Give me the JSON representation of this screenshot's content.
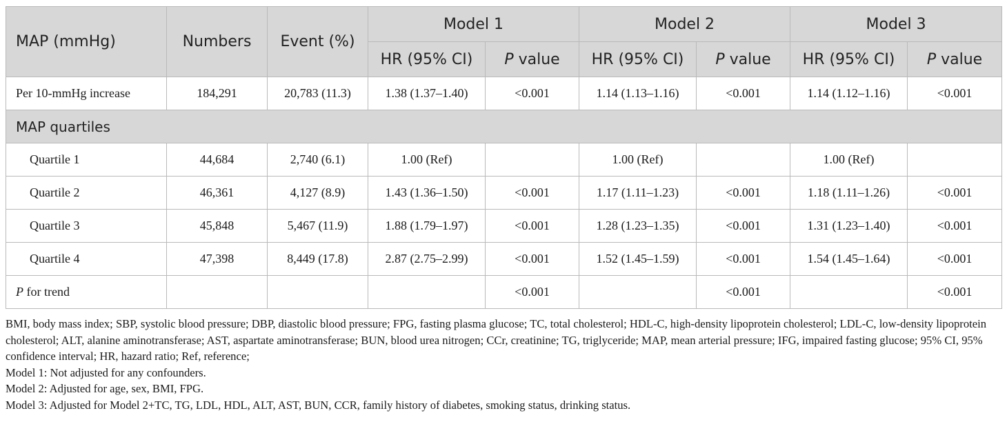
{
  "table": {
    "header": {
      "map_label": "MAP (mmHg)",
      "numbers_label": "Numbers",
      "event_label": "Event (%)",
      "models": [
        "Model 1",
        "Model 2",
        "Model 3"
      ],
      "hr_label": "HR (95% CI)",
      "p_letter": "P",
      "p_value_suffix": " value"
    },
    "per10": {
      "label": "Per 10-mmHg increase",
      "numbers": "184,291",
      "event": "20,783 (11.3)",
      "m1_hr": "1.38 (1.37–1.40)",
      "m1_p": "<0.001",
      "m2_hr": "1.14 (1.13–1.16)",
      "m2_p": "<0.001",
      "m3_hr": "1.14 (1.12–1.16)",
      "m3_p": "<0.001"
    },
    "section_label": "MAP quartiles",
    "quartiles": [
      {
        "label": "Quartile 1",
        "numbers": "44,684",
        "event": "2,740 (6.1)",
        "m1_hr": "1.00 (Ref)",
        "m1_p": "",
        "m2_hr": "1.00 (Ref)",
        "m2_p": "",
        "m3_hr": "1.00 (Ref)",
        "m3_p": ""
      },
      {
        "label": "Quartile 2",
        "numbers": "46,361",
        "event": "4,127 (8.9)",
        "m1_hr": "1.43 (1.36–1.50)",
        "m1_p": "<0.001",
        "m2_hr": "1.17 (1.11–1.23)",
        "m2_p": "<0.001",
        "m3_hr": "1.18 (1.11–1.26)",
        "m3_p": "<0.001"
      },
      {
        "label": "Quartile 3",
        "numbers": "45,848",
        "event": "5,467 (11.9)",
        "m1_hr": "1.88 (1.79–1.97)",
        "m1_p": "<0.001",
        "m2_hr": "1.28 (1.23–1.35)",
        "m2_p": "<0.001",
        "m3_hr": "1.31 (1.23–1.40)",
        "m3_p": "<0.001"
      },
      {
        "label": "Quartile 4",
        "numbers": "47,398",
        "event": "8,449 (17.8)",
        "m1_hr": "2.87 (2.75–2.99)",
        "m1_p": "<0.001",
        "m2_hr": "1.52 (1.45–1.59)",
        "m2_p": "<0.001",
        "m3_hr": "1.54 (1.45–1.64)",
        "m3_p": "<0.001"
      }
    ],
    "trend": {
      "label_p": "P",
      "label_rest": " for trend",
      "m1_p": "<0.001",
      "m2_p": "<0.001",
      "m3_p": "<0.001"
    }
  },
  "footnotes": {
    "abbreviations": "BMI, body mass index; SBP, systolic blood pressure; DBP, diastolic blood pressure; FPG, fasting plasma glucose; TC, total cholesterol; HDL-C, high-density lipoprotein cholesterol; LDL-C, low-density lipoprotein cholesterol; ALT, alanine aminotransferase; AST, aspartate aminotransferase; BUN, blood urea nitrogen; CCr, creatinine; TG, triglyceride; MAP, mean arterial pressure; IFG, impaired fasting glucose; 95% CI, 95% confidence interval; HR, hazard ratio; Ref, reference;",
    "model1": "Model 1: Not adjusted for any confounders.",
    "model2": "Model 2: Adjusted for age, sex, BMI, FPG.",
    "model3": "Model 3: Adjusted for Model 2+TC, TG, LDL, HDL, ALT, AST, BUN, CCR, family history of diabetes, smoking status, drinking status."
  },
  "colors": {
    "header_bg": "#d7d7d7",
    "border": "#b9b9b9",
    "text": "#1a1a1a"
  }
}
